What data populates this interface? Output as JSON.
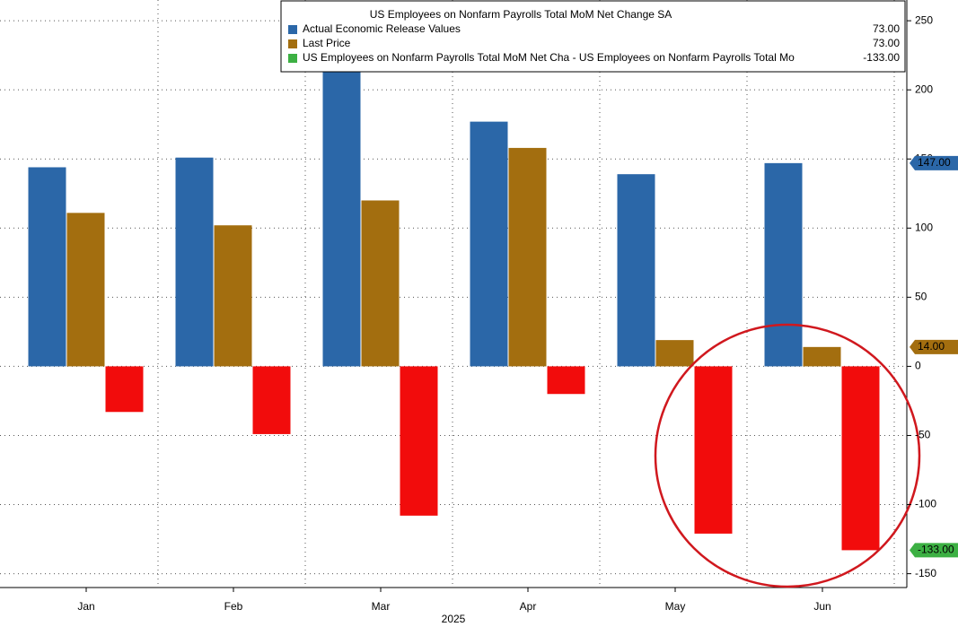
{
  "chart_data": {
    "type": "bar",
    "title": "US Employees on Nonfarm Payrolls Total MoM Net Change SA",
    "categories": [
      "Jan",
      "Feb",
      "Mar",
      "Apr",
      "May",
      "Jun"
    ],
    "xlabel": "2025",
    "series": [
      {
        "name": "Actual Economic Release Values",
        "color": "#2b67a8",
        "legend_color": "#2b67a8",
        "legend_value": "73.00",
        "last_label": "147.00",
        "values": [
          144,
          151,
          228,
          177,
          139,
          147
        ]
      },
      {
        "name": "Last Price",
        "color": "#a36e0f",
        "legend_color": "#a36e0f",
        "legend_value": "73.00",
        "last_label": "14.00",
        "values": [
          111,
          102,
          120,
          158,
          19,
          14
        ]
      },
      {
        "name": "US Employees on Nonfarm Payrolls Total MoM Net Cha - US Employees on Nonfarm Payrolls Total Mo",
        "color": "#f20c0c",
        "legend_color": "#3cb043",
        "legend_value": "-133.00",
        "last_label": "-133.00",
        "values": [
          -33,
          -49,
          -108,
          -20,
          -121,
          -133
        ]
      }
    ],
    "ylim": [
      -160,
      265
    ],
    "yticks": [
      -150,
      -100,
      -50,
      0,
      50,
      100,
      150,
      200,
      250
    ],
    "grid": true
  }
}
